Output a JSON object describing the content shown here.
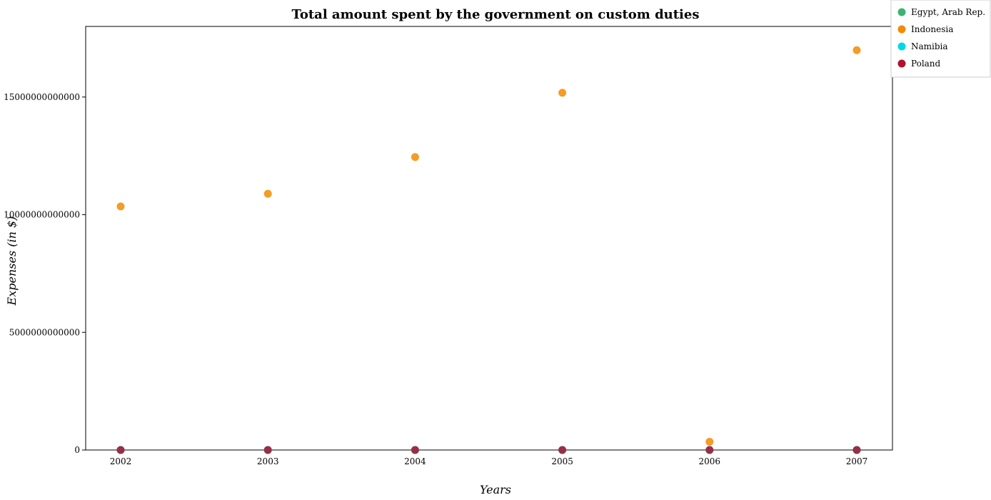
{
  "chart_data": {
    "type": "scatter",
    "title": "Total amount spent by the government on custom duties",
    "xlabel": "Years",
    "ylabel": "Expenses (in $)",
    "categories": [
      "2002",
      "2003",
      "2004",
      "2005",
      "2006",
      "2007"
    ],
    "ylim": [
      0,
      18000000000000
    ],
    "yticks": [
      {
        "value": 0,
        "label": "0"
      },
      {
        "value": 5000000000000,
        "label": "5000000000000"
      },
      {
        "value": 10000000000000,
        "label": "10000000000000"
      },
      {
        "value": 15000000000000,
        "label": "15000000000000"
      }
    ],
    "grid": false,
    "legend_position": "top-right",
    "series": [
      {
        "name": "Egypt, Arab Rep.",
        "color": "#3cb371",
        "values": [
          0,
          0,
          0,
          0,
          0,
          0
        ]
      },
      {
        "name": "Indonesia",
        "color": "#f28b00",
        "values": [
          10350000000000,
          10890000000000,
          12450000000000,
          15180000000000,
          350000000000,
          16990000000000
        ]
      },
      {
        "name": "Namibia",
        "color": "#00d8e6",
        "values": [
          0,
          0,
          0,
          0,
          0,
          0
        ]
      },
      {
        "name": "Poland",
        "color": "#b0122e",
        "values": [
          0,
          0,
          0,
          0,
          0,
          0
        ]
      }
    ]
  }
}
